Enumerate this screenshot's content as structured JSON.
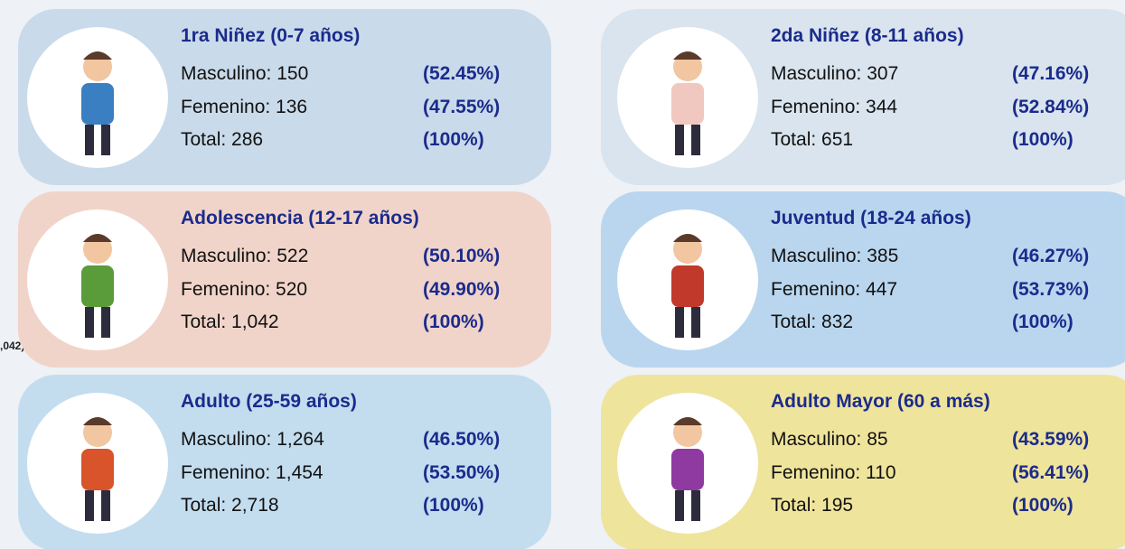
{
  "edge_fragment": ",042)",
  "cards": [
    {
      "title": "1ra Niñez (0-7 años)",
      "rows": [
        {
          "text": "Masculino: 150",
          "pct": "(52.45%)"
        },
        {
          "text": "Femenino: 136",
          "pct": "(47.55%)"
        },
        {
          "text": "Total: 286",
          "pct": "(100%)"
        }
      ]
    },
    {
      "title": "2da Niñez (8-11 años)",
      "rows": [
        {
          "text": "Masculino: 307",
          "pct": "(47.16%)"
        },
        {
          "text": "Femenino: 344",
          "pct": "(52.84%)"
        },
        {
          "text": "Total: 651",
          "pct": "(100%)"
        }
      ]
    },
    {
      "title": "Adolescencia (12-17 años)",
      "rows": [
        {
          "text": "Masculino: 522",
          "pct": "(50.10%)"
        },
        {
          "text": "Femenino: 520",
          "pct": "(49.90%)"
        },
        {
          "text": "Total: 1,042",
          "pct": "(100%)"
        }
      ]
    },
    {
      "title": "Juventud (18-24 años)",
      "rows": [
        {
          "text": "Masculino: 385",
          "pct": "(46.27%)"
        },
        {
          "text": "Femenino: 447",
          "pct": "(53.73%)"
        },
        {
          "text": "Total: 832",
          "pct": "(100%)"
        }
      ]
    },
    {
      "title": "Adulto (25-59 años)",
      "rows": [
        {
          "text": "Masculino: 1,264",
          "pct": "(46.50%)"
        },
        {
          "text": "Femenino: 1,454",
          "pct": "(53.50%)"
        },
        {
          "text": "Total: 2,718",
          "pct": "(100%)"
        }
      ]
    },
    {
      "title": "Adulto Mayor (60 a más)",
      "rows": [
        {
          "text": "Masculino: 85",
          "pct": "(43.59%)"
        },
        {
          "text": "Femenino: 110",
          "pct": "(56.41%)"
        },
        {
          "text": "Total: 195",
          "pct": "(100%)"
        }
      ]
    }
  ]
}
